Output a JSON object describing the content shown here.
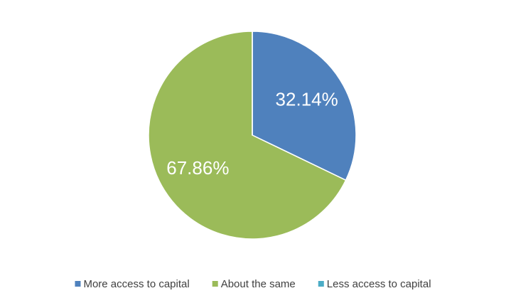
{
  "chart_data": {
    "type": "pie",
    "categories": [
      "More access to capital",
      "About the same",
      "Less access to capital"
    ],
    "values": [
      32.14,
      67.86,
      0
    ],
    "value_labels": [
      "32.14%",
      "67.86%",
      null
    ],
    "colors": [
      "#4f81bd",
      "#9bbb59",
      "#4bacc6"
    ],
    "legend": "bottom"
  }
}
